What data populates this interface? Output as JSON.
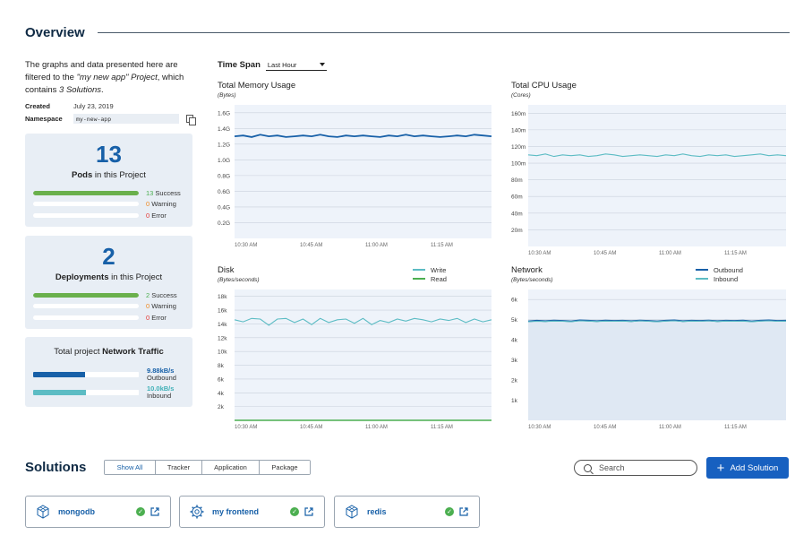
{
  "overview": {
    "title": "Overview",
    "intro_prefix": "The graphs and data presented here are filtered to the ",
    "intro_project": "\"my new app\" Project",
    "intro_mid": ", which contains ",
    "intro_solutions": "3 Solutions",
    "intro_suffix": ".",
    "created_label": "Created",
    "created_value": "July 23, 2019",
    "namespace_label": "Namespace",
    "namespace_value": "my-new-app"
  },
  "pods": {
    "count": "13",
    "label_bold": "Pods",
    "label_rest": " in this Project",
    "success_count": "13",
    "success_label": " Success",
    "warning_count": "0",
    "warning_label": " Warning",
    "error_count": "0",
    "error_label": " Error",
    "success_fraction": 1.0
  },
  "deployments": {
    "count": "2",
    "label_bold": "Deployments",
    "label_rest": " in this Project",
    "success_count": "2",
    "success_label": " Success",
    "warning_count": "0",
    "warning_label": " Warning",
    "error_count": "0",
    "error_label": " Error",
    "success_fraction": 1.0
  },
  "network_traffic": {
    "title_prefix": "Total project ",
    "title_bold": "Network Traffic",
    "outbound_value": "9.88kB/s",
    "outbound_label": "Outbound",
    "outbound_fraction": 0.49,
    "inbound_value": "10.0kB/s",
    "inbound_label": "Inbound",
    "inbound_fraction": 0.5
  },
  "timespan": {
    "label": "Time Span",
    "selected": "Last Hour"
  },
  "colors": {
    "dark_blue": "#1760a8",
    "teal": "#5cbcc4",
    "green": "#4caf50",
    "chart_fill": "#eef3fa"
  },
  "chart_data": [
    {
      "type": "line",
      "title": "Total Memory Usage",
      "unit": "(Bytes)",
      "x_ticks": [
        "10:30 AM",
        "10:45 AM",
        "11:00 AM",
        "11:15 AM"
      ],
      "y_ticks": [
        "1.6G",
        "1.4G",
        "1.2G",
        "1.0G",
        "0.8G",
        "0.6G",
        "0.4G",
        "0.2G"
      ],
      "ylim": [
        0,
        1.7
      ],
      "series": [
        {
          "color": "#1760a8",
          "values": [
            1.3,
            1.31,
            1.29,
            1.32,
            1.3,
            1.31,
            1.29,
            1.3,
            1.31,
            1.3,
            1.32,
            1.3,
            1.29,
            1.31,
            1.3,
            1.31,
            1.3,
            1.29,
            1.31,
            1.3,
            1.32,
            1.3,
            1.31,
            1.3,
            1.29,
            1.3,
            1.31,
            1.3,
            1.32,
            1.31,
            1.3
          ]
        }
      ]
    },
    {
      "type": "line",
      "title": "Total CPU Usage",
      "unit": "(Cores)",
      "x_ticks": [
        "10:30 AM",
        "10:45 AM",
        "11:00 AM",
        "11:15 AM"
      ],
      "y_ticks": [
        "160m",
        "140m",
        "120m",
        "100m",
        "80m",
        "60m",
        "40m",
        "20m"
      ],
      "ylim": [
        0,
        170
      ],
      "series": [
        {
          "color": "#5cbcc4",
          "values": [
            110,
            109,
            111,
            108,
            110,
            109,
            110,
            108,
            109,
            111,
            110,
            108,
            109,
            110,
            109,
            108,
            110,
            109,
            111,
            109,
            108,
            110,
            109,
            110,
            108,
            109,
            110,
            111,
            109,
            110,
            109
          ]
        }
      ]
    },
    {
      "type": "line",
      "title": "Disk",
      "unit": "(Bytes/seconds)",
      "x_ticks": [
        "10:30 AM",
        "10:45 AM",
        "11:00 AM",
        "11:15 AM"
      ],
      "y_ticks": [
        "18k",
        "16k",
        "14k",
        "12k",
        "10k",
        "8k",
        "6k",
        "4k",
        "2k"
      ],
      "ylim": [
        0,
        19
      ],
      "series": [
        {
          "name": "Write",
          "color": "#5cbcc4",
          "values": [
            14.6,
            14.3,
            14.8,
            14.7,
            13.8,
            14.7,
            14.8,
            14.2,
            14.7,
            13.9,
            14.8,
            14.2,
            14.6,
            14.7,
            14.1,
            14.8,
            13.9,
            14.5,
            14.2,
            14.7,
            14.4,
            14.8,
            14.6,
            14.3,
            14.7,
            14.5,
            14.8,
            14.2,
            14.7,
            14.3,
            14.6
          ]
        },
        {
          "name": "Read",
          "color": "#4caf50",
          "values": [
            0,
            0,
            0,
            0,
            0,
            0,
            0,
            0,
            0,
            0,
            0,
            0,
            0,
            0,
            0,
            0,
            0,
            0,
            0,
            0,
            0,
            0,
            0,
            0,
            0,
            0,
            0,
            0,
            0,
            0,
            0
          ]
        }
      ]
    },
    {
      "type": "area",
      "title": "Network",
      "unit": "(Bytes/seconds)",
      "x_ticks": [
        "10:30 AM",
        "10:45 AM",
        "11:00 AM",
        "11:15 AM"
      ],
      "y_ticks": [
        "6k",
        "5k",
        "4k",
        "3k",
        "2k",
        "1k"
      ],
      "ylim": [
        0,
        6.5
      ],
      "series": [
        {
          "name": "Outbound",
          "color": "#1760a8",
          "values": [
            4.92,
            4.95,
            4.93,
            4.96,
            4.94,
            4.92,
            4.97,
            4.95,
            4.93,
            4.96,
            4.94,
            4.95,
            4.93,
            4.96,
            4.94,
            4.92,
            4.95,
            4.97,
            4.93,
            4.95,
            4.94,
            4.96,
            4.93,
            4.95,
            4.94,
            4.96,
            4.92,
            4.95,
            4.97,
            4.94,
            4.95
          ]
        },
        {
          "name": "Inbound",
          "color": "#5cbcc4",
          "values": [
            4.9,
            4.92,
            4.91,
            4.93,
            4.92,
            4.9,
            4.94,
            4.93,
            4.91,
            4.93,
            4.92,
            4.93,
            4.91,
            4.94,
            4.92,
            4.9,
            4.93,
            4.94,
            4.91,
            4.93,
            4.92,
            4.94,
            4.91,
            4.93,
            4.92,
            4.93,
            4.9,
            4.93,
            4.94,
            4.92,
            4.93
          ]
        }
      ]
    }
  ],
  "solutions": {
    "title": "Solutions",
    "filters": [
      "Show All",
      "Tracker",
      "Application",
      "Package"
    ],
    "active_filter": "Show All",
    "search_placeholder": "Search",
    "add_label": "Add Solution",
    "items": [
      {
        "name": "mongodb",
        "icon": "cube-icon",
        "status": "healthy"
      },
      {
        "name": "my frontend",
        "icon": "gear-icon",
        "status": "healthy"
      },
      {
        "name": "redis",
        "icon": "cube-icon",
        "status": "healthy"
      }
    ]
  }
}
